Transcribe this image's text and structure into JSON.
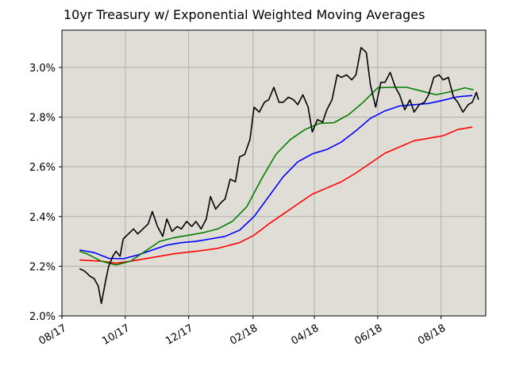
{
  "chart_data": {
    "type": "line",
    "title": "10yr Treasury w/ Exponential Weighted Moving Averages",
    "xlabel": "",
    "ylabel": "",
    "grid": true,
    "background": "#e0ddd6",
    "xlim": [
      "2017-08-01",
      "2018-09-13"
    ],
    "ylim": [
      2.0,
      3.15
    ],
    "x_ticks": [
      {
        "date": "2017-08-01",
        "label": "08/17"
      },
      {
        "date": "2017-10-01",
        "label": "10/17"
      },
      {
        "date": "2017-12-01",
        "label": "12/17"
      },
      {
        "date": "2018-02-01",
        "label": "02/18"
      },
      {
        "date": "2018-04-01",
        "label": "04/18"
      },
      {
        "date": "2018-06-01",
        "label": "06/18"
      },
      {
        "date": "2018-08-01",
        "label": "08/18"
      }
    ],
    "y_ticks": [
      {
        "value": 2.0,
        "label": "2.0%"
      },
      {
        "value": 2.2,
        "label": "2.2%"
      },
      {
        "value": 2.4,
        "label": "2.4%"
      },
      {
        "value": 2.6,
        "label": "2.6%"
      },
      {
        "value": 2.8,
        "label": "2.8%"
      },
      {
        "value": 3.0,
        "label": "3.0%"
      }
    ],
    "series": [
      {
        "color": "#ff0000",
        "points": [
          [
            "2017-08-18",
            2.225
          ],
          [
            "2017-09-08",
            2.22
          ],
          [
            "2017-09-22",
            2.212
          ],
          [
            "2017-10-06",
            2.22
          ],
          [
            "2017-10-27",
            2.235
          ],
          [
            "2017-11-17",
            2.25
          ],
          [
            "2017-12-08",
            2.26
          ],
          [
            "2017-12-29",
            2.272
          ],
          [
            "2018-01-19",
            2.295
          ],
          [
            "2018-02-02",
            2.325
          ],
          [
            "2018-02-16",
            2.37
          ],
          [
            "2018-03-02",
            2.41
          ],
          [
            "2018-03-16",
            2.45
          ],
          [
            "2018-03-30",
            2.49
          ],
          [
            "2018-04-13",
            2.515
          ],
          [
            "2018-04-27",
            2.54
          ],
          [
            "2018-05-11",
            2.575
          ],
          [
            "2018-05-25",
            2.615
          ],
          [
            "2018-06-08",
            2.655
          ],
          [
            "2018-06-22",
            2.68
          ],
          [
            "2018-07-06",
            2.705
          ],
          [
            "2018-07-20",
            2.715
          ],
          [
            "2018-08-03",
            2.725
          ],
          [
            "2018-08-17",
            2.75
          ],
          [
            "2018-08-31",
            2.76
          ]
        ]
      },
      {
        "color": "#0000ff",
        "points": [
          [
            "2017-08-18",
            2.265
          ],
          [
            "2017-09-01",
            2.255
          ],
          [
            "2017-09-15",
            2.232
          ],
          [
            "2017-09-29",
            2.23
          ],
          [
            "2017-10-13",
            2.245
          ],
          [
            "2017-10-27",
            2.265
          ],
          [
            "2017-11-10",
            2.285
          ],
          [
            "2017-11-24",
            2.295
          ],
          [
            "2017-12-08",
            2.3
          ],
          [
            "2017-12-22",
            2.31
          ],
          [
            "2018-01-05",
            2.32
          ],
          [
            "2018-01-19",
            2.345
          ],
          [
            "2018-02-02",
            2.4
          ],
          [
            "2018-02-16",
            2.48
          ],
          [
            "2018-03-02",
            2.56
          ],
          [
            "2018-03-16",
            2.62
          ],
          [
            "2018-03-30",
            2.652
          ],
          [
            "2018-04-13",
            2.67
          ],
          [
            "2018-04-27",
            2.7
          ],
          [
            "2018-05-11",
            2.745
          ],
          [
            "2018-05-25",
            2.795
          ],
          [
            "2018-06-08",
            2.825
          ],
          [
            "2018-06-22",
            2.845
          ],
          [
            "2018-07-06",
            2.85
          ],
          [
            "2018-07-20",
            2.855
          ],
          [
            "2018-08-03",
            2.868
          ],
          [
            "2018-08-17",
            2.882
          ],
          [
            "2018-08-31",
            2.887
          ]
        ]
      },
      {
        "color": "#008000",
        "points": [
          [
            "2017-08-18",
            2.26
          ],
          [
            "2017-08-25",
            2.25
          ],
          [
            "2017-09-08",
            2.22
          ],
          [
            "2017-09-22",
            2.205
          ],
          [
            "2017-10-06",
            2.22
          ],
          [
            "2017-10-20",
            2.26
          ],
          [
            "2017-11-03",
            2.3
          ],
          [
            "2017-11-17",
            2.315
          ],
          [
            "2017-12-01",
            2.325
          ],
          [
            "2017-12-15",
            2.335
          ],
          [
            "2017-12-29",
            2.35
          ],
          [
            "2018-01-12",
            2.38
          ],
          [
            "2018-01-26",
            2.44
          ],
          [
            "2018-02-09",
            2.55
          ],
          [
            "2018-02-23",
            2.65
          ],
          [
            "2018-03-09",
            2.71
          ],
          [
            "2018-03-23",
            2.75
          ],
          [
            "2018-04-06",
            2.775
          ],
          [
            "2018-04-20",
            2.778
          ],
          [
            "2018-05-04",
            2.81
          ],
          [
            "2018-05-18",
            2.86
          ],
          [
            "2018-06-01",
            2.918
          ],
          [
            "2018-06-15",
            2.92
          ],
          [
            "2018-06-29",
            2.92
          ],
          [
            "2018-07-13",
            2.905
          ],
          [
            "2018-07-27",
            2.89
          ],
          [
            "2018-08-10",
            2.902
          ],
          [
            "2018-08-24",
            2.918
          ],
          [
            "2018-09-01",
            2.91
          ]
        ]
      },
      {
        "color": "#000000",
        "points": [
          [
            "2017-08-18",
            2.19
          ],
          [
            "2017-08-23",
            2.18
          ],
          [
            "2017-08-28",
            2.16
          ],
          [
            "2017-09-01",
            2.15
          ],
          [
            "2017-09-05",
            2.12
          ],
          [
            "2017-09-08",
            2.05
          ],
          [
            "2017-09-12",
            2.14
          ],
          [
            "2017-09-15",
            2.2
          ],
          [
            "2017-09-19",
            2.24
          ],
          [
            "2017-09-22",
            2.26
          ],
          [
            "2017-09-26",
            2.24
          ],
          [
            "2017-09-29",
            2.31
          ],
          [
            "2017-10-04",
            2.33
          ],
          [
            "2017-10-09",
            2.35
          ],
          [
            "2017-10-13",
            2.33
          ],
          [
            "2017-10-18",
            2.35
          ],
          [
            "2017-10-23",
            2.37
          ],
          [
            "2017-10-27",
            2.42
          ],
          [
            "2017-11-01",
            2.36
          ],
          [
            "2017-11-06",
            2.32
          ],
          [
            "2017-11-10",
            2.39
          ],
          [
            "2017-11-15",
            2.34
          ],
          [
            "2017-11-20",
            2.36
          ],
          [
            "2017-11-24",
            2.35
          ],
          [
            "2017-11-29",
            2.38
          ],
          [
            "2017-12-04",
            2.36
          ],
          [
            "2017-12-08",
            2.38
          ],
          [
            "2017-12-13",
            2.35
          ],
          [
            "2017-12-18",
            2.39
          ],
          [
            "2017-12-22",
            2.48
          ],
          [
            "2017-12-27",
            2.43
          ],
          [
            "2018-01-02",
            2.46
          ],
          [
            "2018-01-05",
            2.47
          ],
          [
            "2018-01-10",
            2.55
          ],
          [
            "2018-01-15",
            2.54
          ],
          [
            "2018-01-19",
            2.64
          ],
          [
            "2018-01-24",
            2.65
          ],
          [
            "2018-01-29",
            2.71
          ],
          [
            "2018-02-02",
            2.84
          ],
          [
            "2018-02-07",
            2.82
          ],
          [
            "2018-02-12",
            2.86
          ],
          [
            "2018-02-16",
            2.87
          ],
          [
            "2018-02-21",
            2.92
          ],
          [
            "2018-02-26",
            2.86
          ],
          [
            "2018-03-02",
            2.86
          ],
          [
            "2018-03-07",
            2.88
          ],
          [
            "2018-03-12",
            2.87
          ],
          [
            "2018-03-16",
            2.85
          ],
          [
            "2018-03-21",
            2.89
          ],
          [
            "2018-03-26",
            2.84
          ],
          [
            "2018-03-30",
            2.74
          ],
          [
            "2018-04-04",
            2.79
          ],
          [
            "2018-04-09",
            2.78
          ],
          [
            "2018-04-13",
            2.83
          ],
          [
            "2018-04-18",
            2.87
          ],
          [
            "2018-04-23",
            2.97
          ],
          [
            "2018-04-27",
            2.96
          ],
          [
            "2018-05-02",
            2.97
          ],
          [
            "2018-05-07",
            2.95
          ],
          [
            "2018-05-11",
            2.97
          ],
          [
            "2018-05-16",
            3.08
          ],
          [
            "2018-05-21",
            3.06
          ],
          [
            "2018-05-25",
            2.93
          ],
          [
            "2018-05-30",
            2.84
          ],
          [
            "2018-06-04",
            2.94
          ],
          [
            "2018-06-08",
            2.94
          ],
          [
            "2018-06-13",
            2.98
          ],
          [
            "2018-06-18",
            2.92
          ],
          [
            "2018-06-22",
            2.89
          ],
          [
            "2018-06-27",
            2.83
          ],
          [
            "2018-07-02",
            2.87
          ],
          [
            "2018-07-06",
            2.82
          ],
          [
            "2018-07-11",
            2.85
          ],
          [
            "2018-07-16",
            2.86
          ],
          [
            "2018-07-20",
            2.89
          ],
          [
            "2018-07-25",
            2.96
          ],
          [
            "2018-07-30",
            2.97
          ],
          [
            "2018-08-03",
            2.95
          ],
          [
            "2018-08-08",
            2.96
          ],
          [
            "2018-08-13",
            2.88
          ],
          [
            "2018-08-17",
            2.86
          ],
          [
            "2018-08-22",
            2.82
          ],
          [
            "2018-08-27",
            2.85
          ],
          [
            "2018-08-31",
            2.86
          ],
          [
            "2018-09-04",
            2.9
          ],
          [
            "2018-09-06",
            2.87
          ]
        ]
      }
    ]
  }
}
